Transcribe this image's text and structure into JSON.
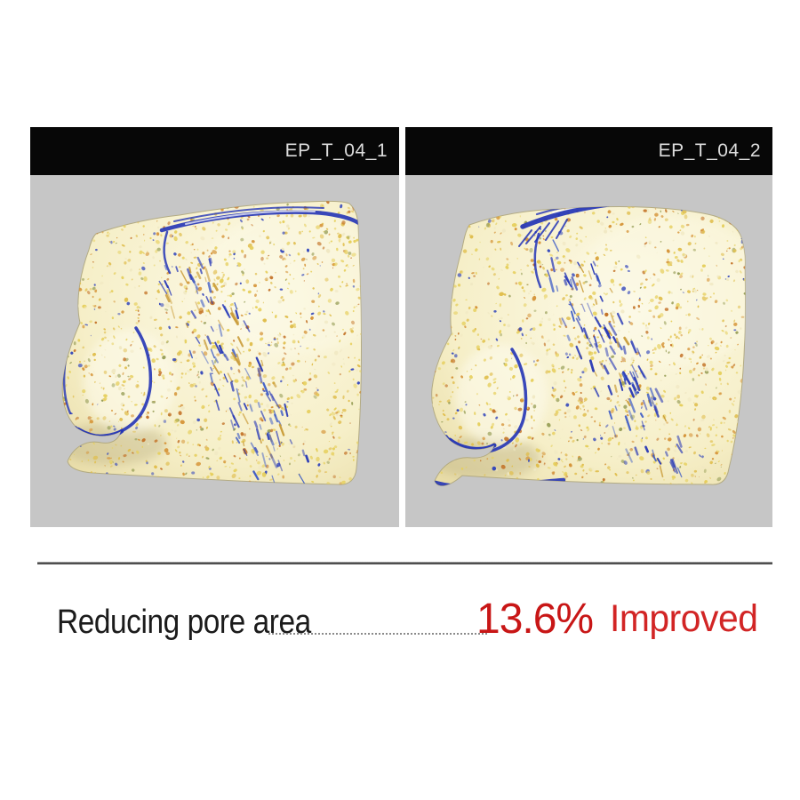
{
  "panels": [
    {
      "label": "EP_T_04_1"
    },
    {
      "label": "EP_T_04_2"
    }
  ],
  "result": {
    "label": "Reducing pore area",
    "value": "13.6%",
    "status": "Improved"
  },
  "colors": {
    "accent_red": "#c81616",
    "status_red": "#d22525",
    "header_bg": "#070707",
    "header_text": "#dcdcdc",
    "panel_bg": "#c6c6c6",
    "divider_dark": "#3f3f3f",
    "skin_base": "#f7f2d2",
    "skin_edge": "#e9dda8",
    "pore_blue": "#2334b6",
    "speckles": [
      "#e6cf5d",
      "#e0be4e",
      "#d6953a",
      "#c4742a",
      "#9aa05a",
      "#f0e8c2",
      "#3346bb"
    ]
  }
}
